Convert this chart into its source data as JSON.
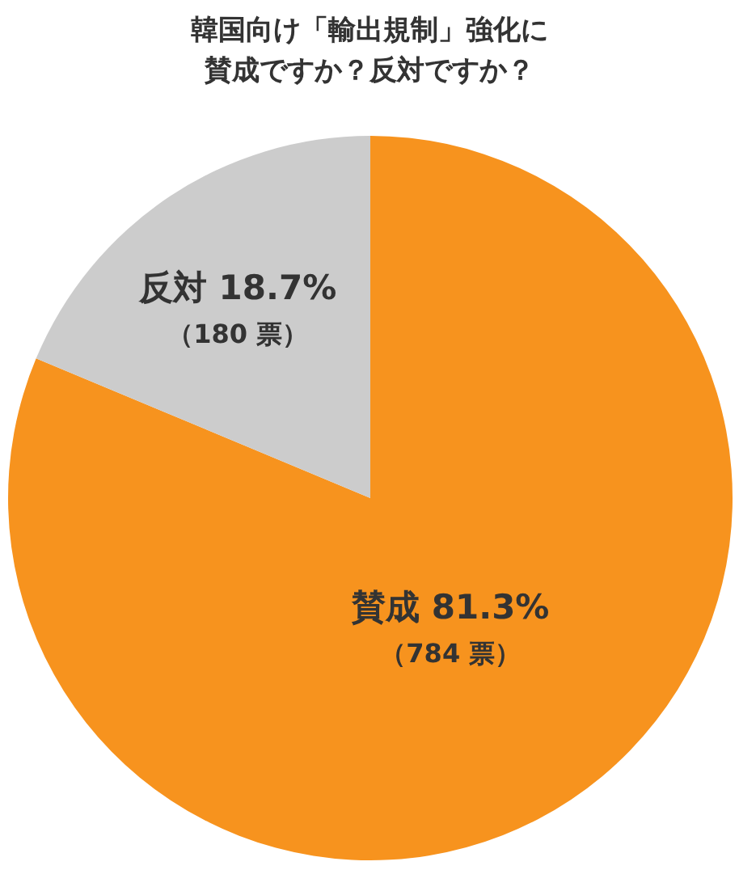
{
  "chart_data": {
    "type": "pie",
    "title": "韓国向け「輸出規制」強化に賛成ですか？反対ですか？",
    "categories": [
      "賛成",
      "反対"
    ],
    "values": [
      81.3,
      18.7
    ],
    "colors": [
      "#f7931e",
      "#cccccc"
    ],
    "value_labels": [
      "81.3%",
      "18.7%"
    ],
    "annotations": [
      "（784 票）",
      "（180 票）"
    ]
  }
}
